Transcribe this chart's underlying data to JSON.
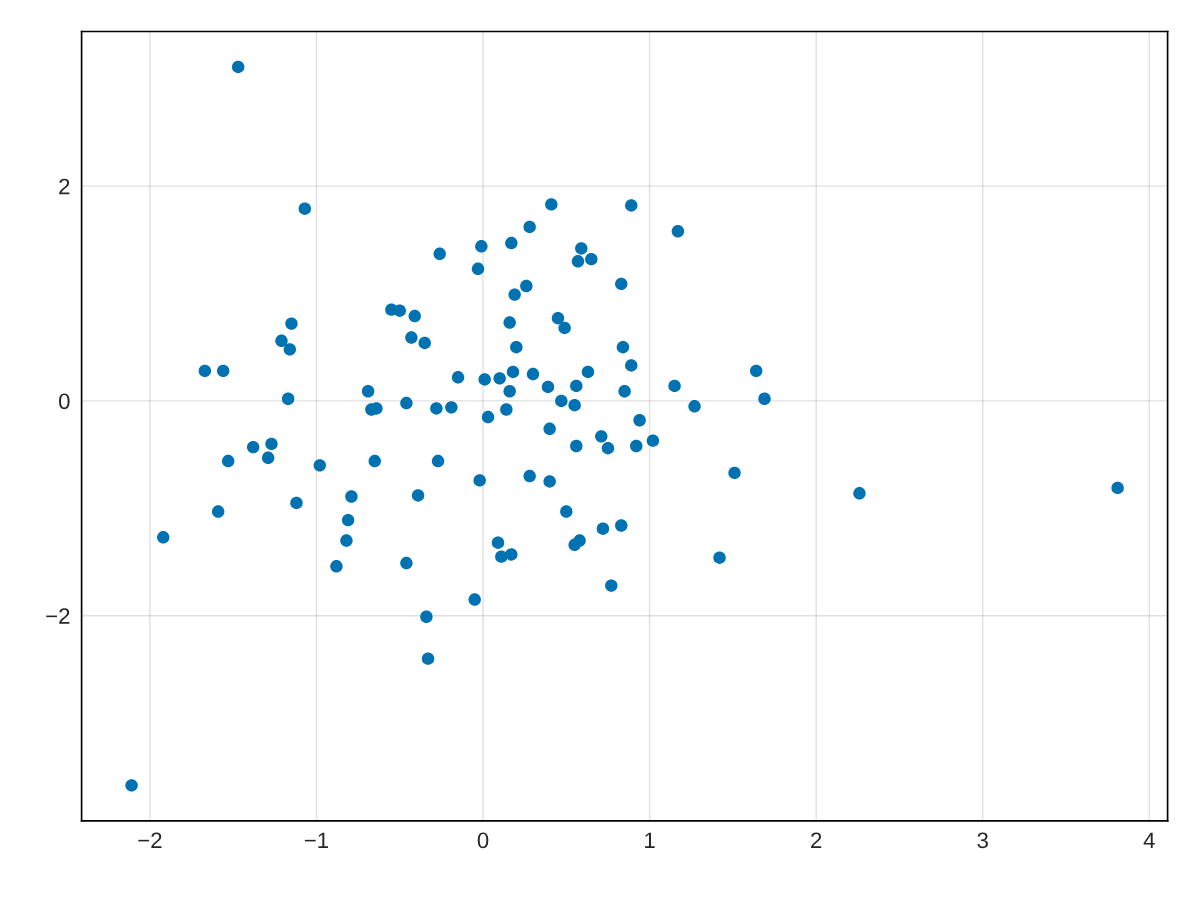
{
  "chart_data": {
    "type": "scatter",
    "marker": "circle",
    "grid": true,
    "xlim": [
      -2.41,
      4.11
    ],
    "ylim": [
      -3.91,
      3.44
    ],
    "xticks": [
      {
        "value": -2,
        "label": "−2"
      },
      {
        "value": -1,
        "label": "−1"
      },
      0,
      1,
      2,
      3,
      4
    ],
    "yticks": [
      {
        "value": -2,
        "label": "−2"
      },
      0,
      2
    ],
    "series": [
      {
        "color": "#0072b2",
        "x": [
          -1.47,
          -1.07,
          -2.11,
          -1.92,
          -1.67,
          -1.56,
          -1.53,
          -1.59,
          -1.38,
          -1.27,
          -1.29,
          -1.21,
          -1.15,
          -1.16,
          -1.17,
          -1.12,
          -0.98,
          -0.88,
          -0.79,
          -0.81,
          -0.82,
          -0.69,
          -0.67,
          -0.64,
          -0.65,
          -0.55,
          -0.5,
          -0.41,
          -0.43,
          -0.35,
          -0.46,
          -0.39,
          -0.46,
          -0.34,
          -0.33,
          -0.26,
          -0.28,
          -0.19,
          -0.15,
          -0.27,
          -0.03,
          -0.01,
          0.01,
          0.03,
          -0.02,
          -0.05,
          0.1,
          0.14,
          0.16,
          0.17,
          0.19,
          0.16,
          0.2,
          0.18,
          0.28,
          0.26,
          0.3,
          0.28,
          0.09,
          0.11,
          0.17,
          0.41,
          0.45,
          0.49,
          0.39,
          0.47,
          0.4,
          0.4,
          0.5,
          0.59,
          0.57,
          0.65,
          0.55,
          0.56,
          0.63,
          0.56,
          0.58,
          0.55,
          0.71,
          0.75,
          0.72,
          0.77,
          0.89,
          0.83,
          0.84,
          0.89,
          0.85,
          0.94,
          0.92,
          1.02,
          0.83,
          1.17,
          1.15,
          1.27,
          1.51,
          1.42,
          1.64,
          1.69,
          2.26,
          3.81
        ],
        "values": [
          3.11,
          1.79,
          -3.58,
          -1.27,
          0.28,
          0.28,
          -0.56,
          -1.03,
          -0.43,
          -0.4,
          -0.53,
          0.56,
          0.72,
          0.48,
          0.02,
          -0.95,
          -0.6,
          -1.54,
          -0.89,
          -1.11,
          -1.3,
          0.09,
          -0.08,
          -0.07,
          -0.56,
          0.85,
          0.84,
          0.79,
          0.59,
          0.54,
          -0.02,
          -0.88,
          -1.51,
          -2.01,
          -2.4,
          1.37,
          -0.07,
          -0.06,
          0.22,
          -0.56,
          1.23,
          1.44,
          0.2,
          -0.15,
          -0.74,
          -1.85,
          0.21,
          -0.08,
          0.09,
          1.47,
          0.99,
          0.73,
          0.5,
          0.27,
          1.62,
          1.07,
          0.25,
          -0.7,
          -1.32,
          -1.45,
          -1.43,
          1.83,
          0.77,
          0.68,
          0.13,
          0.0,
          -0.26,
          -0.75,
          -1.03,
          1.42,
          1.3,
          1.32,
          -0.04,
          0.14,
          0.27,
          -0.42,
          -1.3,
          -1.34,
          -0.33,
          -0.44,
          -1.19,
          -1.72,
          1.82,
          1.09,
          0.5,
          0.33,
          0.09,
          -0.18,
          -0.42,
          -0.37,
          -1.16,
          1.58,
          0.14,
          -0.05,
          -0.67,
          -1.46,
          0.28,
          0.02,
          -0.86,
          -0.81
        ]
      }
    ]
  }
}
